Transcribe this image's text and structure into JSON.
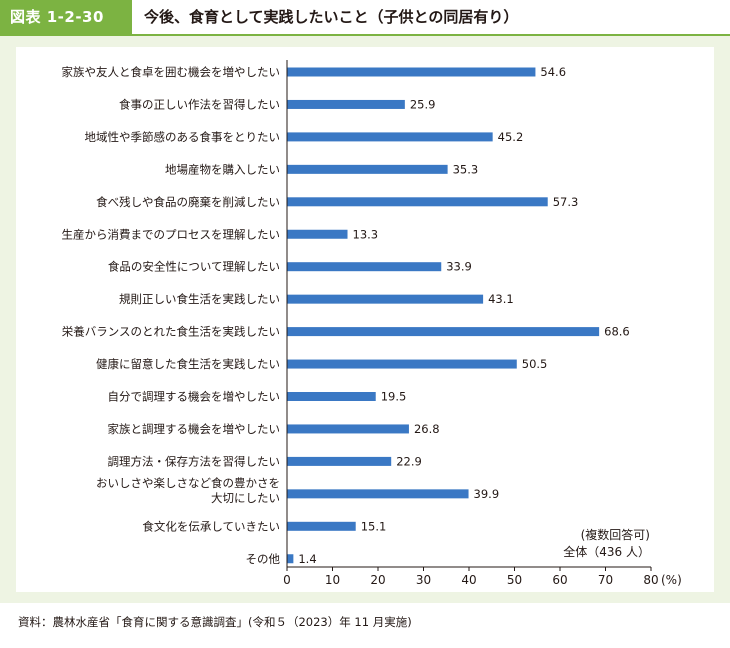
{
  "figure": {
    "number": "図表 1-2-30",
    "title": "今後、食育として実践したいこと（子供との同居有り）",
    "source": "資料：農林水産省「食育に関する意識調査」(令和５（2023）年 11 月実施)"
  },
  "colors": {
    "bar": "#3a78c4",
    "accent": "#7cb342",
    "background": "#eef4e3"
  },
  "chart_data": {
    "type": "bar",
    "orientation": "horizontal",
    "categories": [
      "家族や友人と食卓を囲む機会を増やしたい",
      "食事の正しい作法を習得したい",
      "地域性や季節感のある食事をとりたい",
      "地場産物を購入したい",
      "食べ残しや食品の廃棄を削減したい",
      "生産から消費までのプロセスを理解したい",
      "食品の安全性について理解したい",
      "規則正しい食生活を実践したい",
      "栄養バランスのとれた食生活を実践したい",
      "健康に留意した食生活を実践したい",
      "自分で調理する機会を増やしたい",
      "家族と調理する機会を増やしたい",
      "調理方法・保存方法を習得したい",
      "おいしさや楽しさなど食の豊かさを\n大切にしたい",
      "食文化を伝承していきたい",
      "その他"
    ],
    "values": [
      54.6,
      25.9,
      45.2,
      35.3,
      57.3,
      13.3,
      33.9,
      43.1,
      68.6,
      50.5,
      19.5,
      26.8,
      22.9,
      39.9,
      15.1,
      1.4
    ],
    "xlim": [
      0,
      80
    ],
    "xticks": [
      "0",
      "10",
      "20",
      "30",
      "40",
      "50",
      "60",
      "70",
      "80"
    ],
    "unit_label": "(%)",
    "notes": [
      "(複数回答可)",
      "全体（436 人）"
    ],
    "grid": false
  }
}
